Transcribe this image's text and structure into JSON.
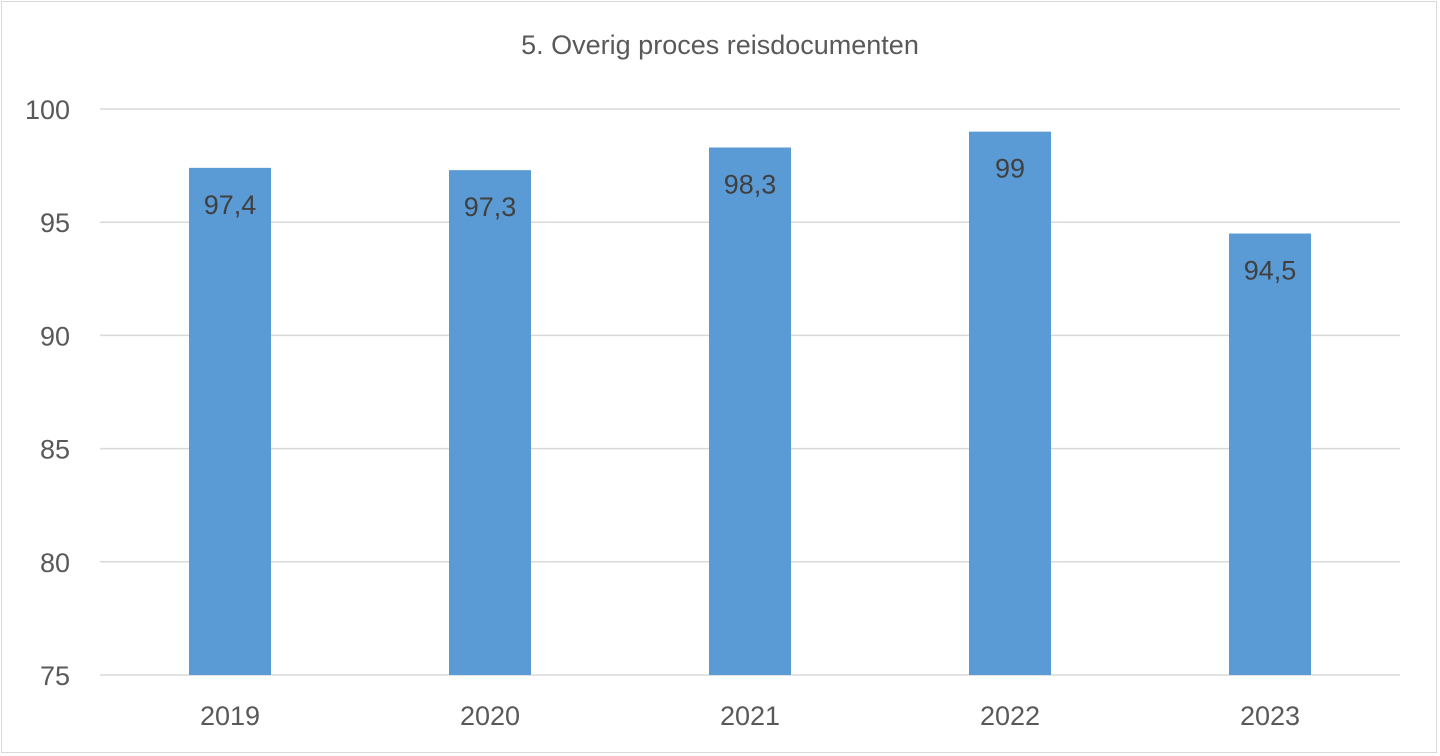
{
  "chart_data": {
    "type": "bar",
    "title": "5. Overig proces reisdocumenten",
    "categories": [
      "2019",
      "2020",
      "2021",
      "2022",
      "2023"
    ],
    "values": [
      97.4,
      97.3,
      98.3,
      99,
      94.5
    ],
    "data_labels": [
      "97,4",
      "97,3",
      "98,3",
      "99",
      "94,5"
    ],
    "xlabel": "",
    "ylabel": "",
    "ylim": [
      75,
      100
    ],
    "yticks": [
      75,
      80,
      85,
      90,
      95,
      100
    ],
    "grid": true,
    "legend": "none",
    "bar_color": "#5b9bd5",
    "grid_color": "#d9d9d9"
  }
}
